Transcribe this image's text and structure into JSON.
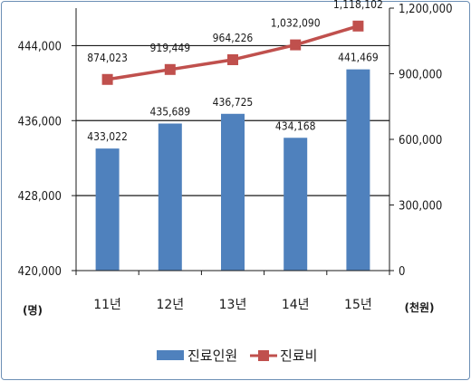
{
  "chart_data": {
    "type": "bar+line",
    "categories": [
      "11년",
      "12년",
      "13년",
      "14년",
      "15년"
    ],
    "series": [
      {
        "name": "진료인원",
        "type": "bar",
        "axis": "left",
        "values": [
          433022,
          435689,
          436725,
          434168,
          441469
        ],
        "labels": [
          "433,022",
          "435,689",
          "436,725",
          "434,168",
          "441,469"
        ],
        "color": "#4f81bd"
      },
      {
        "name": "진료비",
        "type": "line",
        "axis": "right",
        "values": [
          874023,
          919449,
          964226,
          1032090,
          1118102
        ],
        "labels": [
          "874,023",
          "919,449",
          "964,226",
          "1,032,090",
          "1,118,102"
        ],
        "color": "#c0504d"
      }
    ],
    "left_axis": {
      "ylim": [
        420000,
        448000
      ],
      "ticks": [
        420000,
        428000,
        436000,
        444000
      ],
      "tick_labels": [
        "420,000",
        "428,000",
        "436,000",
        "444,000"
      ],
      "unit": "(명)"
    },
    "right_axis": {
      "ylim": [
        0,
        1200000
      ],
      "ticks": [
        0,
        300000,
        600000,
        900000,
        1200000
      ],
      "tick_labels": [
        "0",
        "300,000",
        "600,000",
        "900,000",
        "1,200,000"
      ],
      "unit": "(천원)"
    },
    "grid": true,
    "legend": "bottom"
  }
}
